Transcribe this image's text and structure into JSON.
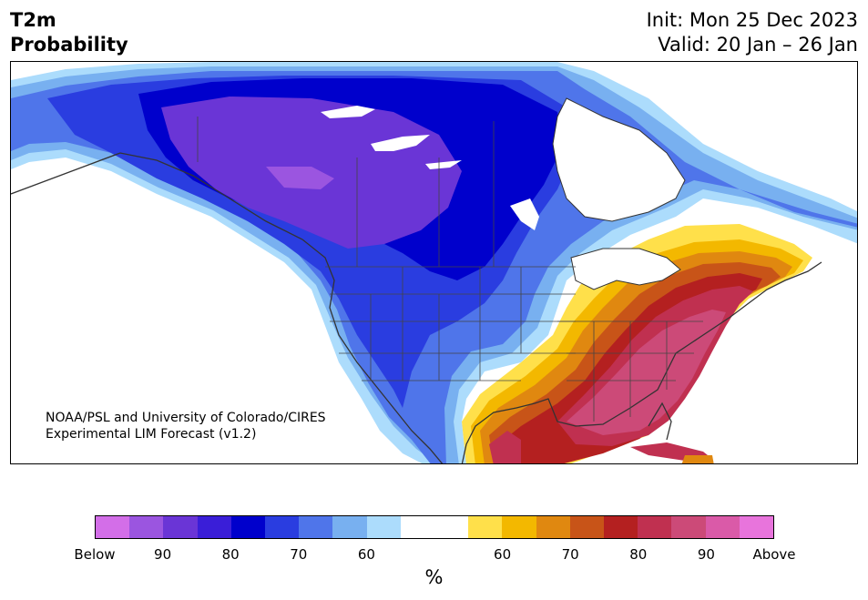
{
  "header": {
    "title_line1": "T2m",
    "title_line2": "Probability",
    "init": "Init: Mon 25 Dec 2023",
    "valid": "Valid: 20 Jan – 26 Jan"
  },
  "map": {
    "credit_line1": "NOAA/PSL and University of Colorado/CIRES",
    "credit_line2": "Experimental LIM Forecast (v1.2)"
  },
  "colorbar": {
    "colors": [
      "#d36ee8",
      "#9b55e0",
      "#6a35d6",
      "#3a1ed8",
      "#0000cc",
      "#2a3de0",
      "#4f75ea",
      "#78b0f0",
      "#acdcfc",
      "#ffffff",
      "#ffffff",
      "#ffe04a",
      "#f3b800",
      "#e08810",
      "#c85418",
      "#b42020",
      "#c03050",
      "#cc4a78",
      "#da5aa8",
      "#e874dc"
    ],
    "tick_labels": [
      "Below",
      "90",
      "80",
      "70",
      "60",
      "60",
      "70",
      "80",
      "90",
      "Above"
    ],
    "unit": "%"
  }
}
